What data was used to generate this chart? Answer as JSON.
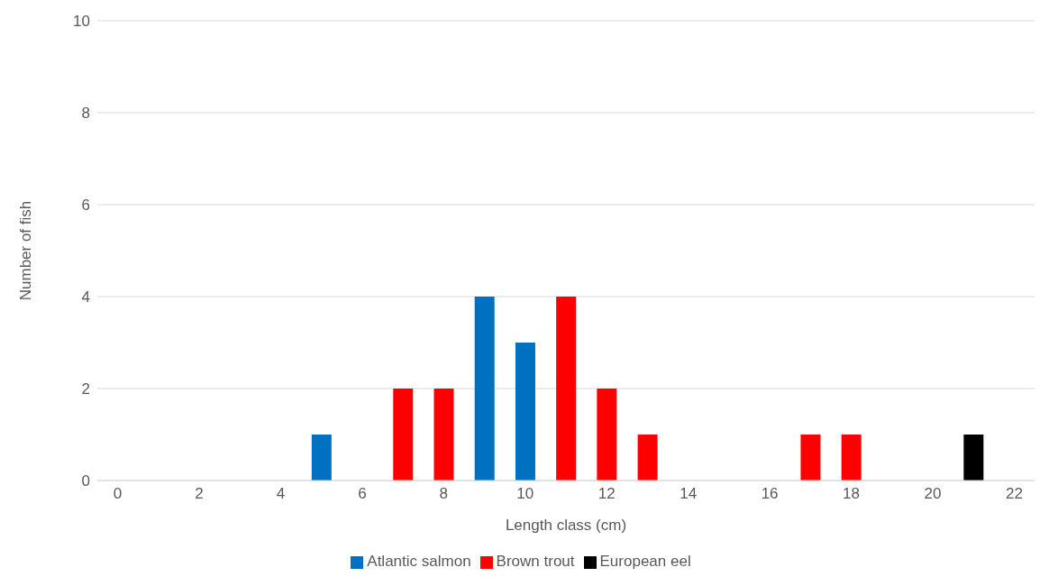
{
  "chart_data": {
    "type": "bar",
    "xlabel": "Length class (cm)",
    "ylabel": "Number of fish",
    "categories": [
      "0",
      null,
      "2",
      null,
      "4",
      null,
      "6",
      null,
      "8",
      null,
      "10",
      null,
      "12",
      null,
      "14",
      null,
      "16",
      null,
      "18",
      null,
      "20",
      null,
      "22"
    ],
    "series": [
      {
        "name": "Atlantic salmon",
        "color": "#0070c0",
        "values": [
          null,
          null,
          null,
          null,
          null,
          1,
          null,
          null,
          null,
          4,
          3,
          null,
          null,
          null,
          null,
          null,
          null,
          null,
          null,
          null,
          null,
          null,
          null
        ]
      },
      {
        "name": "Brown trout",
        "color": "#ff0000",
        "values": [
          null,
          null,
          null,
          null,
          null,
          null,
          null,
          2,
          2,
          null,
          null,
          4,
          2,
          1,
          null,
          null,
          null,
          1,
          1,
          null,
          null,
          null,
          null
        ]
      },
      {
        "name": "European eel",
        "color": "#000000",
        "values": [
          null,
          null,
          null,
          null,
          null,
          null,
          null,
          null,
          null,
          null,
          null,
          null,
          null,
          null,
          null,
          null,
          null,
          null,
          null,
          null,
          null,
          1,
          null
        ]
      }
    ],
    "ylim": [
      0,
      10
    ],
    "yticks": [
      0,
      2,
      4,
      6,
      8,
      10
    ],
    "grid": "y",
    "legend": "bottom"
  }
}
